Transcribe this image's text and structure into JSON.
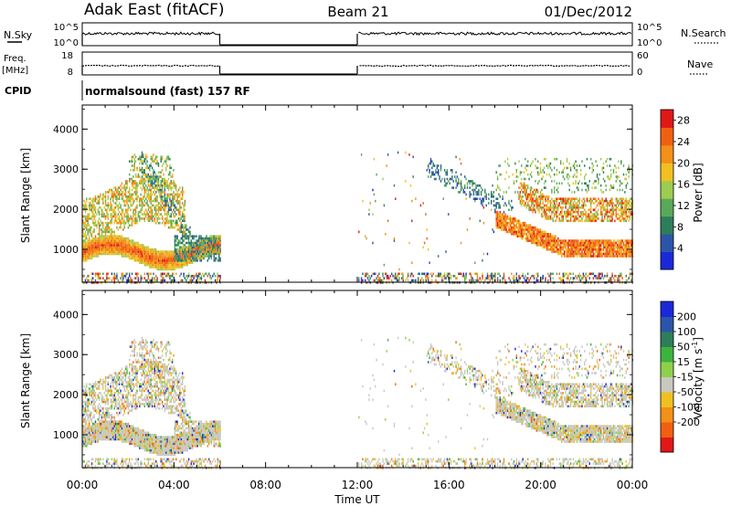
{
  "header": {
    "station": "Adak East (fitACF)",
    "beam": "Beam 21",
    "date": "01/Dec/2012"
  },
  "strip_panels": {
    "nsky_label": "N.Sky",
    "nsky_ticks": [
      "10^5",
      "10^0"
    ],
    "nsearch_label": "N.Search",
    "nsearch_ticks": [
      "10^5",
      "10^0"
    ],
    "freq_label": "Freq.",
    "freq_unit": "[MHz]",
    "freq_ticks": [
      "18",
      "8"
    ],
    "nave_label": "Nave",
    "nave_ticks": [
      "60",
      "0"
    ],
    "cpid_label": "CPID",
    "cpid_text": "normalsound (fast) 157 RF"
  },
  "colors": {
    "power": [
      "#1a28d8",
      "#2b55a8",
      "#2e7d5a",
      "#5aa85a",
      "#9dcc50",
      "#f0c020",
      "#f39018",
      "#f06010",
      "#e01818"
    ],
    "velocity": [
      "#e01818",
      "#f06010",
      "#f39018",
      "#f0c020",
      "#c8c8c0",
      "#8fd04a",
      "#3eb33e",
      "#2e7d5a",
      "#2b55a8",
      "#1a28d8"
    ]
  },
  "chart_data": [
    {
      "type": "heatmap",
      "title": "Power",
      "ylabel": "Slant Range [km]",
      "xlabel": "",
      "x_ticks": [
        "00:00",
        "04:00",
        "08:00",
        "12:00",
        "16:00",
        "20:00",
        "00:00"
      ],
      "y_ticks": [
        "1000",
        "2000",
        "3000",
        "4000"
      ],
      "xlim_hours": [
        0,
        24
      ],
      "ylim_km": [
        180,
        4600
      ],
      "data_gap_hours": [
        6,
        12
      ],
      "colorbar_label": "Power [dB]",
      "colorbar_ticks": [
        "4",
        "8",
        "12",
        "16",
        "20",
        "24",
        "28"
      ],
      "colorbar_range": [
        0,
        30
      ]
    },
    {
      "type": "heatmap",
      "title": "Velocity",
      "ylabel": "Slant Range [km]",
      "xlabel": "Time UT",
      "x_ticks": [
        "00:00",
        "04:00",
        "08:00",
        "12:00",
        "16:00",
        "20:00",
        "00:00"
      ],
      "y_ticks": [
        "1000",
        "2000",
        "3000",
        "4000"
      ],
      "xlim_hours": [
        0,
        24
      ],
      "ylim_km": [
        180,
        4600
      ],
      "data_gap_hours": [
        6,
        12
      ],
      "colorbar_label": "Velocity [m s",
      "colorbar_unit_sup": "-1",
      "colorbar_label_end": "]",
      "colorbar_ticks": [
        "200",
        "100",
        "50",
        "15",
        "-15",
        "-50",
        "-100",
        "-200"
      ]
    }
  ]
}
